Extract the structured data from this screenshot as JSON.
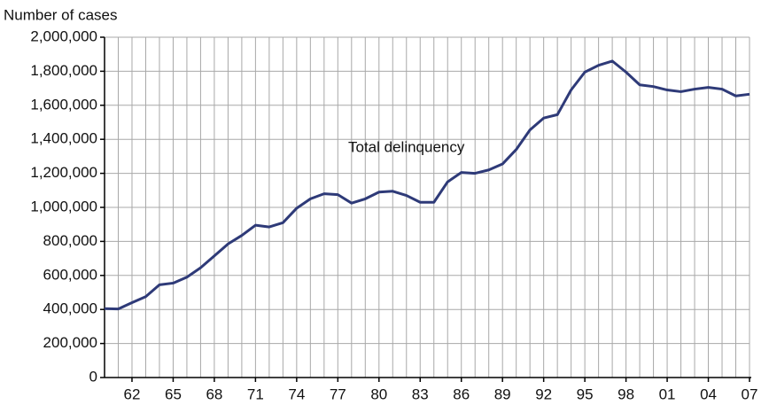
{
  "chart_data": {
    "type": "line",
    "y_axis_label": "Number of cases",
    "x": [
      1960,
      1961,
      1962,
      1963,
      1964,
      1965,
      1966,
      1967,
      1968,
      1969,
      1970,
      1971,
      1972,
      1973,
      1974,
      1975,
      1976,
      1977,
      1978,
      1979,
      1980,
      1981,
      1982,
      1983,
      1984,
      1985,
      1986,
      1987,
      1988,
      1989,
      1990,
      1991,
      1992,
      1993,
      1994,
      1995,
      1996,
      1997,
      1998,
      1999,
      2000,
      2001,
      2002,
      2003,
      2004,
      2005,
      2006,
      2007
    ],
    "series": [
      {
        "name": "Total delinquency",
        "color": "#2e3a78",
        "values": [
          405000,
          403000,
          440000,
          475000,
          545000,
          555000,
          590000,
          645000,
          715000,
          785000,
          835000,
          895000,
          885000,
          910000,
          995000,
          1050000,
          1080000,
          1075000,
          1025000,
          1050000,
          1090000,
          1095000,
          1070000,
          1030000,
          1030000,
          1150000,
          1205000,
          1200000,
          1220000,
          1255000,
          1340000,
          1455000,
          1525000,
          1545000,
          1690000,
          1795000,
          1835000,
          1860000,
          1795000,
          1720000,
          1710000,
          1690000,
          1680000,
          1695000,
          1705000,
          1695000,
          1655000,
          1665000
        ]
      }
    ],
    "xlim": [
      1960,
      2007
    ],
    "xticks": [
      {
        "value": 1962,
        "label": "62"
      },
      {
        "value": 1965,
        "label": "65"
      },
      {
        "value": 1968,
        "label": "68"
      },
      {
        "value": 1971,
        "label": "71"
      },
      {
        "value": 1974,
        "label": "74"
      },
      {
        "value": 1977,
        "label": "77"
      },
      {
        "value": 1980,
        "label": "80"
      },
      {
        "value": 1983,
        "label": "83"
      },
      {
        "value": 1986,
        "label": "86"
      },
      {
        "value": 1989,
        "label": "89"
      },
      {
        "value": 1992,
        "label": "92"
      },
      {
        "value": 1995,
        "label": "95"
      },
      {
        "value": 1998,
        "label": "98"
      },
      {
        "value": 2001,
        "label": "01"
      },
      {
        "value": 2004,
        "label": "04"
      },
      {
        "value": 2007,
        "label": "07"
      }
    ],
    "ylim": [
      0,
      2000000
    ],
    "yticks": [
      0,
      {
        "value": 200000,
        "label": "200,000"
      },
      {
        "value": 400000,
        "label": "400,000"
      },
      {
        "value": 600000,
        "label": "600,000"
      },
      {
        "value": 800000,
        "label": "800,000"
      },
      {
        "value": 1000000,
        "label": "1,000,000"
      },
      {
        "value": 1200000,
        "label": "1,200,000"
      },
      {
        "value": 1400000,
        "label": "1,400,000"
      },
      {
        "value": 1600000,
        "label": "1,600,000"
      },
      {
        "value": 1800000,
        "label": "1,800,000"
      },
      {
        "value": 2000000,
        "label": "2,000,000"
      }
    ],
    "grid": true
  }
}
